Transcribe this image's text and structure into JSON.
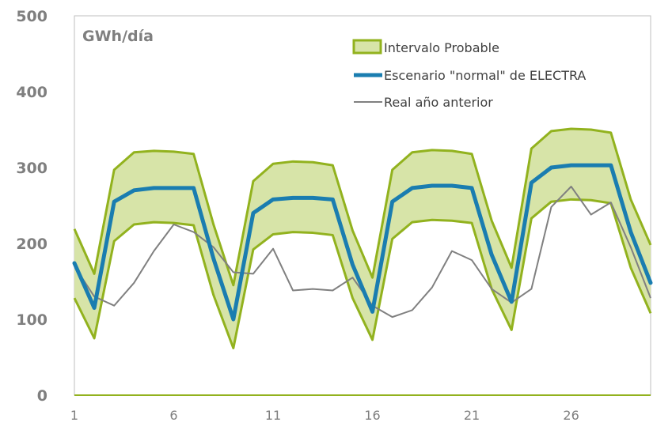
{
  "chart_data": {
    "type": "line",
    "ylabel": "GWh/día",
    "ylim": [
      0,
      500
    ],
    "yticks": [
      0,
      100,
      200,
      300,
      400,
      500
    ],
    "xlim": [
      1,
      30
    ],
    "xticks": [
      1,
      6,
      11,
      16,
      21,
      26
    ],
    "x": [
      1,
      2,
      3,
      4,
      5,
      6,
      7,
      8,
      9,
      10,
      11,
      12,
      13,
      14,
      15,
      16,
      17,
      18,
      19,
      20,
      21,
      22,
      23,
      24,
      25,
      26,
      27,
      28,
      29,
      30
    ],
    "grid": false,
    "legend_position": "top-right",
    "colors": {
      "band_fill": "#d7e4a8",
      "band_edge": "#92b21e",
      "scenario": "#1a7db0",
      "real": "#808080",
      "axis": "#92b21e",
      "plot_border": "#bfbfbf"
    },
    "series": [
      {
        "name": "Intervalo Probable",
        "kind": "band",
        "upper": [
          219,
          160,
          297,
          320,
          322,
          321,
          318,
          225,
          145,
          282,
          305,
          308,
          307,
          303,
          217,
          155,
          297,
          320,
          323,
          322,
          318,
          230,
          168,
          325,
          348,
          351,
          350,
          346,
          258,
          198
        ],
        "lower": [
          128,
          75,
          203,
          225,
          228,
          227,
          224,
          132,
          62,
          192,
          212,
          215,
          214,
          211,
          128,
          73,
          206,
          228,
          231,
          230,
          227,
          140,
          86,
          233,
          255,
          258,
          257,
          253,
          168,
          108
        ]
      },
      {
        "name": "Escenario \"normal\" de ELECTRA",
        "kind": "line",
        "values": [
          174,
          115,
          255,
          270,
          273,
          273,
          273,
          180,
          100,
          240,
          258,
          260,
          260,
          258,
          172,
          110,
          255,
          273,
          276,
          276,
          273,
          185,
          123,
          280,
          300,
          303,
          303,
          303,
          215,
          148
        ]
      },
      {
        "name": "Real año anterior",
        "kind": "line",
        "values": [
          170,
          130,
          118,
          148,
          190,
          225,
          215,
          195,
          162,
          160,
          193,
          138,
          140,
          138,
          155,
          118,
          103,
          112,
          142,
          190,
          178,
          140,
          122,
          140,
          248,
          275,
          238,
          254,
          195,
          128
        ]
      }
    ]
  }
}
